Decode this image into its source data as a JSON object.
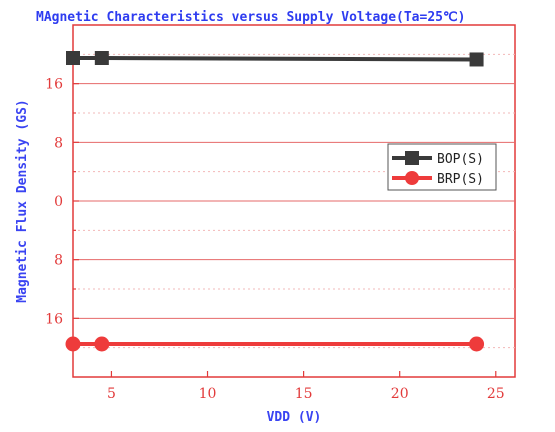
{
  "chart_data": {
    "type": "line",
    "title": "MAgnetic Characteristics versus Supply Voltage(Ta=25℃)",
    "xlabel": "VDD (V)",
    "ylabel": "Magnetic Flux Density (GS)",
    "xlim": [
      3,
      26
    ],
    "ylim": [
      -24,
      24
    ],
    "x_ticks": [
      5,
      10,
      15,
      20,
      25
    ],
    "x_tick_labels": [
      "5",
      "10",
      "15",
      "20",
      "25"
    ],
    "y_ticks": [
      16,
      8,
      0,
      -8,
      -16
    ],
    "y_tick_labels": [
      "16",
      "8",
      "0",
      "8",
      "16"
    ],
    "grid": true,
    "legend_position": "right",
    "series": [
      {
        "name": "BOP(S)",
        "color": "#3a3a3a",
        "marker": "square",
        "x": [
          3,
          4.5,
          24
        ],
        "y": [
          19.5,
          19.5,
          19.3
        ]
      },
      {
        "name": "BRP(S)",
        "color": "#ee3b3b",
        "marker": "circle",
        "x": [
          3,
          4.5,
          24
        ],
        "y": [
          -19.5,
          -19.5,
          -19.5
        ]
      }
    ],
    "colors": {
      "axis": "#e23a3a",
      "grid": "#f2b8b8",
      "title": "#2e3cf0"
    }
  }
}
